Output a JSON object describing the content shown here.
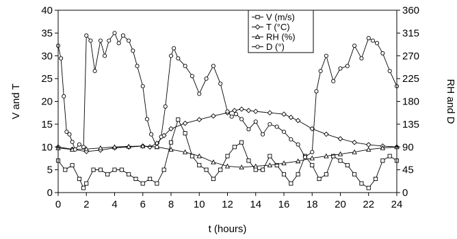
{
  "chart_data": {
    "type": "line",
    "xlabel": "t (hours)",
    "ylabel_left": "V and T",
    "ylabel_right": "RH and D",
    "x_ticks": [
      "0",
      "2",
      "4",
      "6",
      "8",
      "10",
      "12",
      "14",
      "16",
      "18",
      "20",
      "22",
      "24"
    ],
    "y_left_ticks": [
      "0",
      "5",
      "10",
      "15",
      "20",
      "25",
      "30",
      "35",
      "40"
    ],
    "y_right_ticks": [
      "0",
      "45",
      "90",
      "135",
      "180",
      "225",
      "270",
      "315",
      "360"
    ],
    "xlim": [
      0,
      24
    ],
    "ylim_left": [
      0,
      40
    ],
    "ylim_right": [
      0,
      360
    ],
    "grid": false,
    "legend_position": "top-center",
    "series": [
      {
        "name": "V (m/s)",
        "axis": "left",
        "marker": "square",
        "x": [
          0,
          0.5,
          1,
          1.5,
          1.8,
          2,
          2.5,
          3,
          3.5,
          4,
          4.5,
          5,
          5.5,
          6,
          6.5,
          7,
          7.5,
          8,
          8.5,
          9,
          9.5,
          10,
          10.5,
          11,
          11.5,
          12,
          12.5,
          13,
          13.5,
          14,
          14.5,
          15,
          15.5,
          16,
          16.5,
          17,
          17.5,
          18,
          18.5,
          19,
          19.5,
          20,
          20.5,
          21,
          21.5,
          22,
          22.5,
          23,
          23.5,
          24
        ],
        "values": [
          7,
          5,
          6,
          3,
          1,
          2,
          5,
          5,
          4,
          5,
          5,
          4,
          3,
          2,
          3,
          2,
          5,
          11,
          16,
          13,
          8,
          6,
          5,
          3,
          5,
          8,
          10,
          11,
          7,
          5,
          5,
          8,
          6,
          4,
          2,
          4,
          8,
          6,
          3,
          4,
          8,
          7,
          6,
          4,
          2,
          1,
          3,
          7,
          8,
          7
        ]
      },
      {
        "name": "T (°C)",
        "axis": "left",
        "marker": "diamond",
        "x": [
          0,
          1,
          2,
          3,
          4,
          5,
          6,
          6.5,
          7,
          7.5,
          8,
          9,
          10,
          11,
          12,
          12.5,
          13,
          13.5,
          14,
          15,
          16,
          16.5,
          17,
          18,
          19,
          20,
          21,
          22,
          23,
          24
        ],
        "values": [
          10,
          9.5,
          9,
          9.3,
          9.8,
          10,
          10.2,
          10,
          10.8,
          12.5,
          14,
          15.2,
          16,
          16.8,
          17.5,
          18,
          18.3,
          18,
          17.8,
          17.5,
          17.2,
          16.5,
          15.8,
          14,
          12.8,
          11.8,
          11,
          10.5,
          10.2,
          10
        ]
      },
      {
        "name": "RH (%)",
        "axis": "right",
        "marker": "triangle",
        "x": [
          0,
          1,
          2,
          3,
          4,
          5,
          6,
          7,
          8,
          9,
          10,
          11,
          12,
          13,
          14,
          15,
          16,
          17,
          18,
          19,
          20,
          21,
          22,
          23,
          24
        ],
        "values": [
          88,
          85,
          86,
          88,
          90,
          91,
          92,
          90,
          85,
          80,
          72,
          60,
          52,
          50,
          52,
          54,
          58,
          62,
          68,
          72,
          76,
          80,
          85,
          88,
          90
        ]
      },
      {
        "name": "D (°)",
        "axis": "right",
        "marker": "circle",
        "x": [
          0,
          0.2,
          0.4,
          0.6,
          0.8,
          1,
          1.2,
          1.5,
          1.8,
          2,
          2.3,
          2.6,
          3,
          3.3,
          3.6,
          4,
          4.3,
          4.6,
          5,
          5.3,
          5.6,
          6,
          6.3,
          6.6,
          7,
          7.3,
          7.6,
          8,
          8.2,
          8.5,
          9,
          9.5,
          10,
          10.5,
          11,
          11.5,
          12,
          12.3,
          12.6,
          13,
          13.5,
          14,
          14.5,
          15,
          15.5,
          16,
          16.5,
          17,
          17.5,
          18,
          18.3,
          18.6,
          19,
          19.5,
          20,
          20.5,
          21,
          21.5,
          22,
          22.3,
          22.6,
          23,
          23.5,
          24
        ],
        "values": [
          290,
          265,
          190,
          120,
          115,
          100,
          85,
          95,
          90,
          310,
          300,
          240,
          300,
          270,
          300,
          315,
          295,
          310,
          300,
          280,
          250,
          210,
          145,
          115,
          90,
          110,
          170,
          270,
          285,
          265,
          250,
          230,
          195,
          225,
          250,
          215,
          160,
          150,
          155,
          145,
          125,
          140,
          115,
          135,
          130,
          120,
          105,
          95,
          70,
          80,
          200,
          240,
          270,
          220,
          245,
          250,
          290,
          265,
          305,
          300,
          295,
          275,
          240,
          210
        ]
      }
    ]
  }
}
